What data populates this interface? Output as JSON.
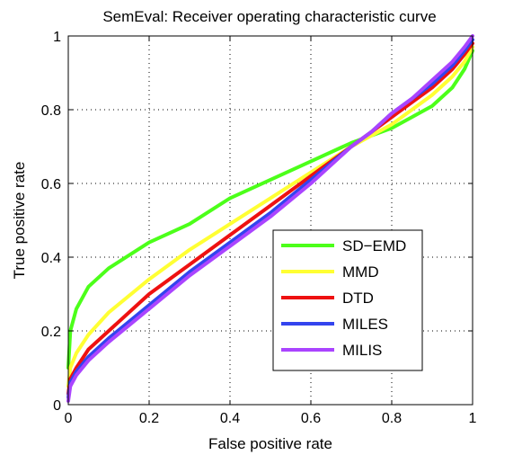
{
  "chart_data": {
    "type": "line",
    "title": "SemEval: Receiver operating characteristic curve",
    "xlabel": "False positive rate",
    "ylabel": "True positive rate",
    "xlim": [
      0,
      1
    ],
    "ylim": [
      0,
      1
    ],
    "xticks": [
      "0",
      "0.2",
      "0.4",
      "0.6",
      "0.8",
      "1"
    ],
    "yticks": [
      "0",
      "0.2",
      "0.4",
      "0.6",
      "0.8",
      "1"
    ],
    "grid": "dotted",
    "legend_position": "lower-right",
    "series": [
      {
        "name": "SD−EMD",
        "color": "#4cff1a",
        "x": [
          0,
          0.005,
          0.02,
          0.05,
          0.1,
          0.2,
          0.3,
          0.4,
          0.5,
          0.6,
          0.7,
          0.75,
          0.8,
          0.85,
          0.9,
          0.95,
          0.98,
          1
        ],
        "y": [
          0.1,
          0.2,
          0.26,
          0.32,
          0.37,
          0.44,
          0.49,
          0.56,
          0.61,
          0.66,
          0.71,
          0.73,
          0.75,
          0.78,
          0.81,
          0.86,
          0.91,
          0.96
        ]
      },
      {
        "name": "MMD",
        "color": "#ffff33",
        "x": [
          0,
          0.005,
          0.02,
          0.05,
          0.1,
          0.2,
          0.3,
          0.4,
          0.5,
          0.6,
          0.7,
          0.75,
          0.8,
          0.85,
          0.9,
          0.95,
          0.98,
          1
        ],
        "y": [
          0.05,
          0.1,
          0.14,
          0.19,
          0.25,
          0.34,
          0.42,
          0.49,
          0.56,
          0.63,
          0.7,
          0.73,
          0.76,
          0.8,
          0.84,
          0.89,
          0.93,
          0.97
        ]
      },
      {
        "name": "DTD",
        "color": "#ee1111",
        "x": [
          0,
          0.005,
          0.02,
          0.05,
          0.1,
          0.2,
          0.3,
          0.4,
          0.5,
          0.6,
          0.7,
          0.75,
          0.8,
          0.85,
          0.9,
          0.95,
          0.98,
          1
        ],
        "y": [
          0.03,
          0.07,
          0.1,
          0.15,
          0.2,
          0.3,
          0.38,
          0.46,
          0.54,
          0.62,
          0.7,
          0.74,
          0.78,
          0.82,
          0.86,
          0.91,
          0.95,
          0.98
        ]
      },
      {
        "name": "MILES",
        "color": "#3344ee",
        "x": [
          0,
          0.005,
          0.02,
          0.05,
          0.1,
          0.2,
          0.3,
          0.4,
          0.5,
          0.6,
          0.7,
          0.75,
          0.8,
          0.85,
          0.9,
          0.95,
          0.98,
          1
        ],
        "y": [
          0.02,
          0.06,
          0.09,
          0.13,
          0.18,
          0.27,
          0.36,
          0.44,
          0.52,
          0.61,
          0.7,
          0.74,
          0.79,
          0.83,
          0.87,
          0.92,
          0.96,
          0.99
        ]
      },
      {
        "name": "MILIS",
        "color": "#aa44ff",
        "x": [
          0,
          0.005,
          0.02,
          0.05,
          0.1,
          0.2,
          0.3,
          0.4,
          0.5,
          0.6,
          0.7,
          0.75,
          0.8,
          0.85,
          0.9,
          0.95,
          0.98,
          1
        ],
        "y": [
          0.01,
          0.05,
          0.08,
          0.12,
          0.17,
          0.26,
          0.35,
          0.43,
          0.51,
          0.6,
          0.7,
          0.74,
          0.79,
          0.83,
          0.88,
          0.93,
          0.97,
          1.0
        ]
      }
    ]
  }
}
